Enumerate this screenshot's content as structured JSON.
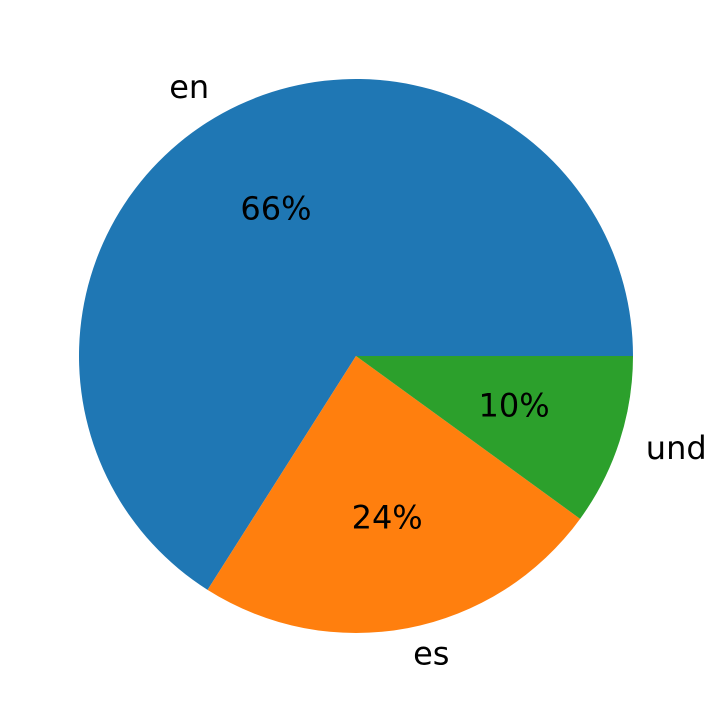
{
  "chart_data": {
    "type": "pie",
    "categories": [
      "en",
      "es",
      "und"
    ],
    "values": [
      66,
      24,
      10
    ],
    "value_labels": [
      "66%",
      "24%",
      "10%"
    ],
    "colors": [
      "#1f77b4",
      "#ff7f0e",
      "#2ca02c"
    ],
    "start_angle": 0,
    "counterclock": true
  }
}
